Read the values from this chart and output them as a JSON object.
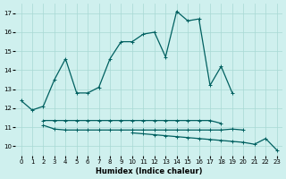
{
  "xlabel": "Humidex (Indice chaleur)",
  "x": [
    0,
    1,
    2,
    3,
    4,
    5,
    6,
    7,
    8,
    9,
    10,
    11,
    12,
    13,
    14,
    15,
    16,
    17,
    18,
    19,
    20,
    21,
    22,
    23
  ],
  "line_main": [
    12.4,
    11.9,
    12.1,
    13.5,
    14.6,
    12.8,
    12.8,
    13.1,
    14.6,
    15.5,
    15.5,
    15.9,
    16.0,
    14.7,
    17.1,
    16.6,
    16.7,
    13.2,
    14.2,
    12.8,
    null,
    null,
    null,
    null
  ],
  "line_flat": [
    null,
    null,
    11.35,
    11.35,
    11.35,
    11.35,
    11.35,
    11.35,
    11.35,
    11.35,
    11.35,
    11.35,
    11.35,
    11.35,
    11.35,
    11.35,
    11.35,
    11.35,
    11.2,
    null,
    null,
    null,
    null,
    null
  ],
  "line_mid": [
    null,
    null,
    11.1,
    10.9,
    10.85,
    10.85,
    10.85,
    10.85,
    10.85,
    10.85,
    10.85,
    10.85,
    10.85,
    10.85,
    10.85,
    10.85,
    10.85,
    10.85,
    10.85,
    10.9,
    10.85,
    null,
    null,
    null
  ],
  "line_low": [
    null,
    null,
    null,
    null,
    null,
    null,
    null,
    null,
    null,
    null,
    10.7,
    10.65,
    10.6,
    10.55,
    10.5,
    10.45,
    10.4,
    10.35,
    10.3,
    10.25,
    10.2,
    10.1,
    10.4,
    9.8
  ],
  "line_color": "#006060",
  "bg_color": "#cff0ee",
  "grid_color": "#a8d8d4",
  "ylim": [
    9.5,
    17.5
  ],
  "xlim": [
    -0.5,
    23.5
  ],
  "yticks": [
    10,
    11,
    12,
    13,
    14,
    15,
    16,
    17
  ],
  "xticks": [
    0,
    1,
    2,
    3,
    4,
    5,
    6,
    7,
    8,
    9,
    10,
    11,
    12,
    13,
    14,
    15,
    16,
    17,
    18,
    19,
    20,
    21,
    22,
    23
  ]
}
